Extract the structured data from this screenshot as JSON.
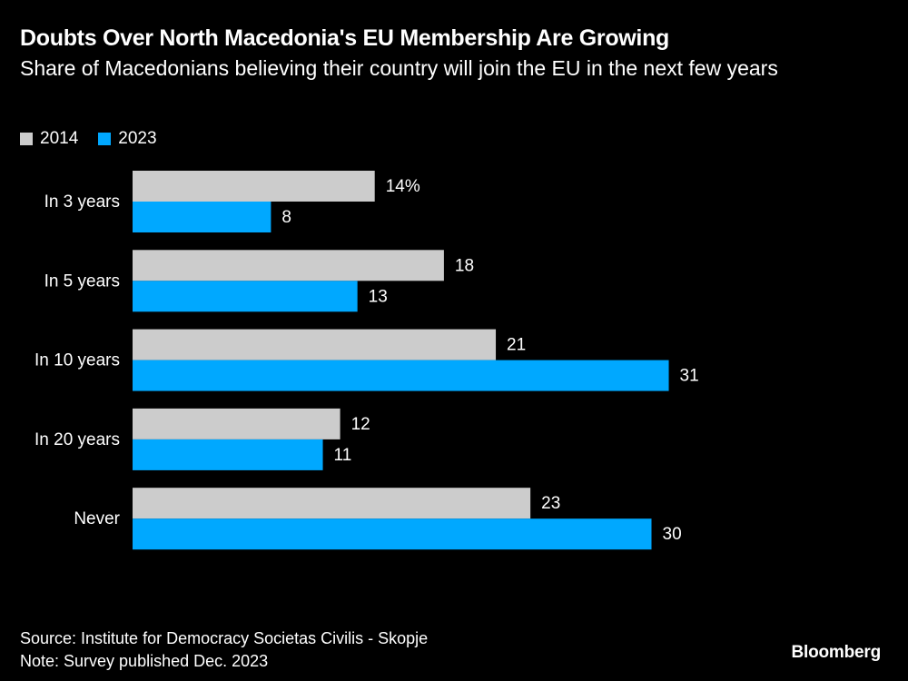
{
  "header": {
    "title": "Doubts Over North Macedonia's EU Membership Are Growing",
    "subtitle": "Share of Macedonians believing their country will join the EU in the next few years"
  },
  "legend": [
    {
      "label": "2014",
      "color": "#cccccc"
    },
    {
      "label": "2023",
      "color": "#00a8ff"
    }
  ],
  "chart_data": {
    "type": "bar",
    "orientation": "horizontal",
    "categories": [
      "In 3 years",
      "In 5 years",
      "In 10 years",
      "In 20 years",
      "Never"
    ],
    "series": [
      {
        "name": "2014",
        "values": [
          14,
          18,
          21,
          12,
          23
        ],
        "color": "#cccccc"
      },
      {
        "name": "2023",
        "values": [
          8,
          13,
          31,
          11,
          30
        ],
        "color": "#00a8ff"
      }
    ],
    "data_labels": {
      "2014": [
        "14%",
        "18",
        "21",
        "12",
        "23"
      ],
      "2023": [
        "8",
        "13",
        "31",
        "11",
        "30"
      ]
    },
    "unit": "%",
    "xlim": [
      0,
      31
    ],
    "grid": false,
    "legend_position": "top-left"
  },
  "footer": {
    "source": "Source: Institute for Democracy Societas Civilis - Skopje",
    "note": "Note: Survey published Dec. 2023",
    "brand": "Bloomberg"
  }
}
